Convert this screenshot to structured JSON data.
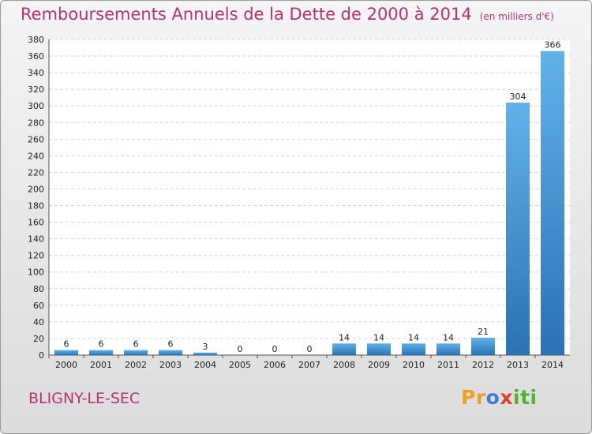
{
  "header": {
    "title": "Remboursements Annuels de la Dette de 2000 à 2014",
    "subtitle": "(en milliers d'€)"
  },
  "footer": {
    "commune": "BLIGNY-LE-SEC",
    "logo": {
      "text": "Proxiti",
      "letters": [
        "P",
        "r",
        "o",
        "x",
        "i",
        "t",
        "i"
      ],
      "colors": [
        "#f0a020",
        "#f0a020",
        "#3a7fd0",
        "#e04030",
        "#58b030",
        "#58b030",
        "#58b030"
      ]
    }
  },
  "colors": {
    "bar": "#4a9ad8",
    "bar_light": "#62b2ea",
    "bar_dark": "#2a72b4",
    "title": "#b5336e"
  },
  "chart_data": {
    "type": "bar",
    "categories": [
      "2000",
      "2001",
      "2002",
      "2003",
      "2004",
      "2005",
      "2006",
      "2007",
      "2008",
      "2009",
      "2010",
      "2011",
      "2012",
      "2013",
      "2014"
    ],
    "values": [
      6,
      6,
      6,
      6,
      3,
      0,
      0,
      0,
      14,
      14,
      14,
      14,
      21,
      304,
      366
    ],
    "value_labels": [
      "6",
      "6",
      "6",
      "6",
      "3",
      "0",
      "0",
      "0",
      "14",
      "14",
      "14",
      "14",
      "21",
      "304",
      "366"
    ],
    "title": "Remboursements Annuels de la Dette de 2000 à 2014",
    "subtitle": "(en milliers d'€)",
    "xlabel": "",
    "ylabel": "",
    "ylim": [
      0,
      380
    ],
    "yticks": [
      0,
      20,
      40,
      60,
      80,
      100,
      120,
      140,
      160,
      180,
      200,
      220,
      240,
      260,
      280,
      300,
      320,
      340,
      360,
      380
    ],
    "grid": true,
    "legend": "none"
  }
}
